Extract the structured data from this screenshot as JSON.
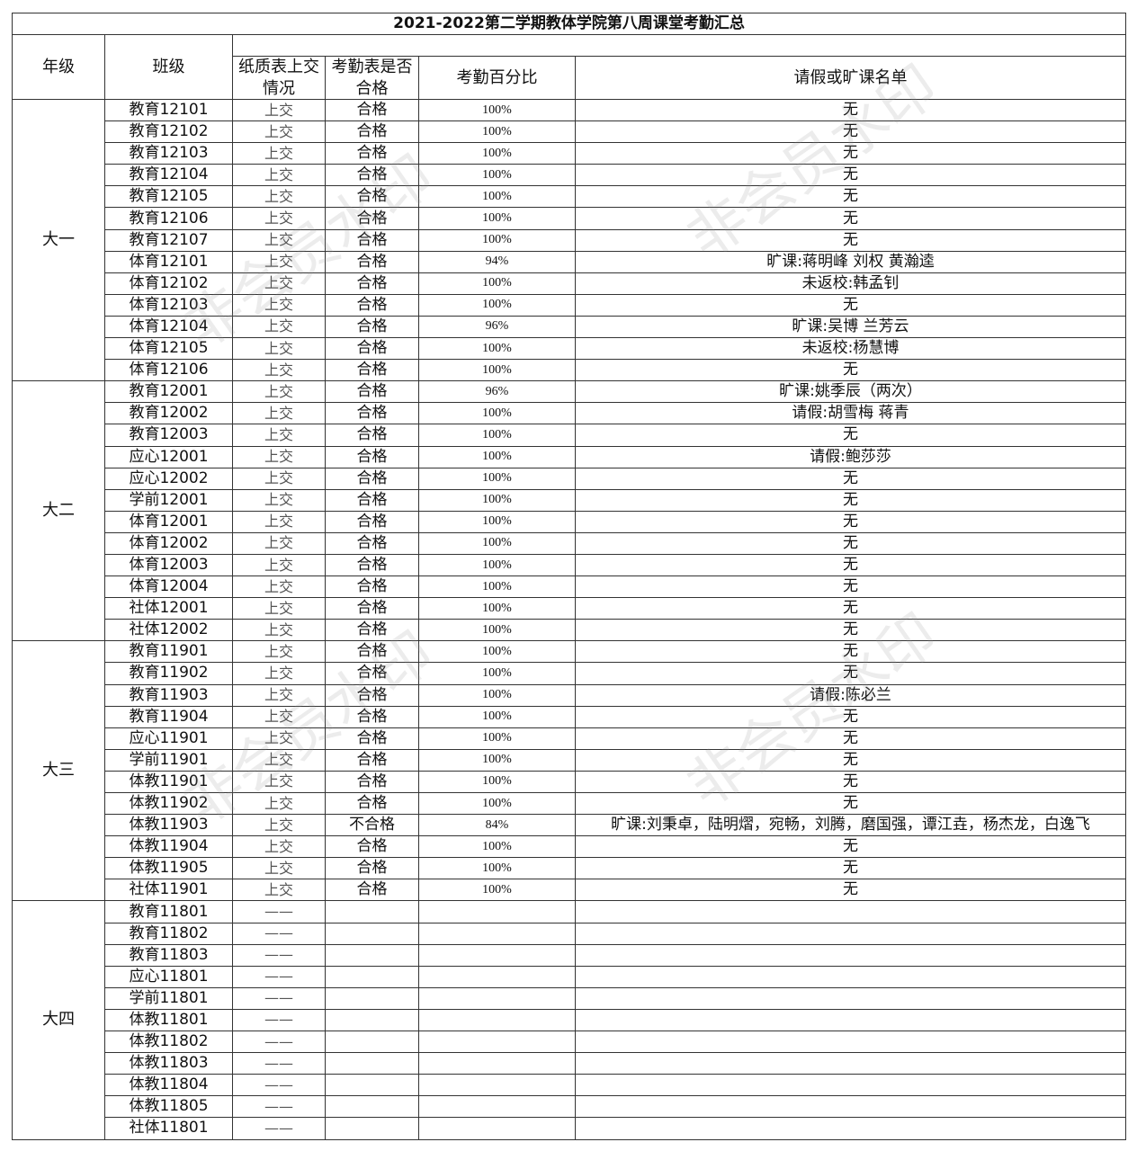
{
  "title": "2021-2022第二学期教体学院第八周课堂考勤汇总",
  "headers": {
    "grade": "年级",
    "class": "班级",
    "paper": "纸质表上交情况",
    "qualified": "考勤表是否合格",
    "percent": "考勤百分比",
    "absent": "请假或旷课名单"
  },
  "watermark": "非会员水印",
  "groups": [
    {
      "grade": "大一",
      "rows": [
        [
          "教育12101",
          "上交",
          "合格",
          "100%",
          "无"
        ],
        [
          "教育12102",
          "上交",
          "合格",
          "100%",
          "无"
        ],
        [
          "教育12103",
          "上交",
          "合格",
          "100%",
          "无"
        ],
        [
          "教育12104",
          "上交",
          "合格",
          "100%",
          "无"
        ],
        [
          "教育12105",
          "上交",
          "合格",
          "100%",
          "无"
        ],
        [
          "教育12106",
          "上交",
          "合格",
          "100%",
          "无"
        ],
        [
          "教育12107",
          "上交",
          "合格",
          "100%",
          "无"
        ],
        [
          "体育12101",
          "上交",
          "合格",
          "94%",
          "旷课:蒋明峰  刘权  黄瀚逵"
        ],
        [
          "体育12102",
          "上交",
          "合格",
          "100%",
          "未返校:韩孟钊"
        ],
        [
          "体育12103",
          "上交",
          "合格",
          "100%",
          "无"
        ],
        [
          "体育12104",
          "上交",
          "合格",
          "96%",
          "旷课:吴博  兰芳云"
        ],
        [
          "体育12105",
          "上交",
          "合格",
          "100%",
          "未返校:杨慧博"
        ],
        [
          "体育12106",
          "上交",
          "合格",
          "100%",
          "无"
        ]
      ]
    },
    {
      "grade": "大二",
      "rows": [
        [
          "教育12001",
          "上交",
          "合格",
          "96%",
          "旷课:姚季辰（两次）"
        ],
        [
          "教育12002",
          "上交",
          "合格",
          "100%",
          "请假:胡雪梅   蒋青"
        ],
        [
          "教育12003",
          "上交",
          "合格",
          "100%",
          "无"
        ],
        [
          "应心12001",
          "上交",
          "合格",
          "100%",
          "请假:鲍莎莎"
        ],
        [
          "应心12002",
          "上交",
          "合格",
          "100%",
          "无"
        ],
        [
          "学前12001",
          "上交",
          "合格",
          "100%",
          "无"
        ],
        [
          "体育12001",
          "上交",
          "合格",
          "100%",
          "无"
        ],
        [
          "体育12002",
          "上交",
          "合格",
          "100%",
          "无"
        ],
        [
          "体育12003",
          "上交",
          "合格",
          "100%",
          "无"
        ],
        [
          "体育12004",
          "上交",
          "合格",
          "100%",
          "无"
        ],
        [
          "社体12001",
          "上交",
          "合格",
          "100%",
          "无"
        ],
        [
          "社体12002",
          "上交",
          "合格",
          "100%",
          "无"
        ]
      ]
    },
    {
      "grade": "大三",
      "rows": [
        [
          "教育11901",
          "上交",
          "合格",
          "100%",
          "无"
        ],
        [
          "教育11902",
          "上交",
          "合格",
          "100%",
          "无"
        ],
        [
          "教育11903",
          "上交",
          "合格",
          "100%",
          "请假:陈必兰"
        ],
        [
          "教育11904",
          "上交",
          "合格",
          "100%",
          "无"
        ],
        [
          "应心11901",
          "上交",
          "合格",
          "100%",
          "无"
        ],
        [
          "学前11901",
          "上交",
          "合格",
          "100%",
          "无"
        ],
        [
          "体教11901",
          "上交",
          "合格",
          "100%",
          "无"
        ],
        [
          "体教11902",
          "上交",
          "合格",
          "100%",
          "无"
        ],
        [
          "体教11903",
          "上交",
          "不合格",
          "84%",
          "旷课:刘秉卓，陆明熠，宛畅，刘腾，磨国强，谭江垚，杨杰龙，白逸飞"
        ],
        [
          "体教11904",
          "上交",
          "合格",
          "100%",
          "无"
        ],
        [
          "体教11905",
          "上交",
          "合格",
          "100%",
          "无"
        ],
        [
          "社体11901",
          "上交",
          "合格",
          "100%",
          "无"
        ]
      ]
    },
    {
      "grade": "大四",
      "rows": [
        [
          "教育11801",
          "——",
          "",
          "",
          ""
        ],
        [
          "教育11802",
          "——",
          "",
          "",
          ""
        ],
        [
          "教育11803",
          "——",
          "",
          "",
          ""
        ],
        [
          "应心11801",
          "——",
          "",
          "",
          ""
        ],
        [
          "学前11801",
          "——",
          "",
          "",
          ""
        ],
        [
          "体教11801",
          "——",
          "",
          "",
          ""
        ],
        [
          "体教11802",
          "——",
          "",
          "",
          ""
        ],
        [
          "体教11803",
          "——",
          "",
          "",
          ""
        ],
        [
          "体教11804",
          "——",
          "",
          "",
          ""
        ],
        [
          "体教11805",
          "——",
          "",
          "",
          ""
        ],
        [
          "社体11801",
          "——",
          "",
          "",
          ""
        ]
      ]
    }
  ]
}
